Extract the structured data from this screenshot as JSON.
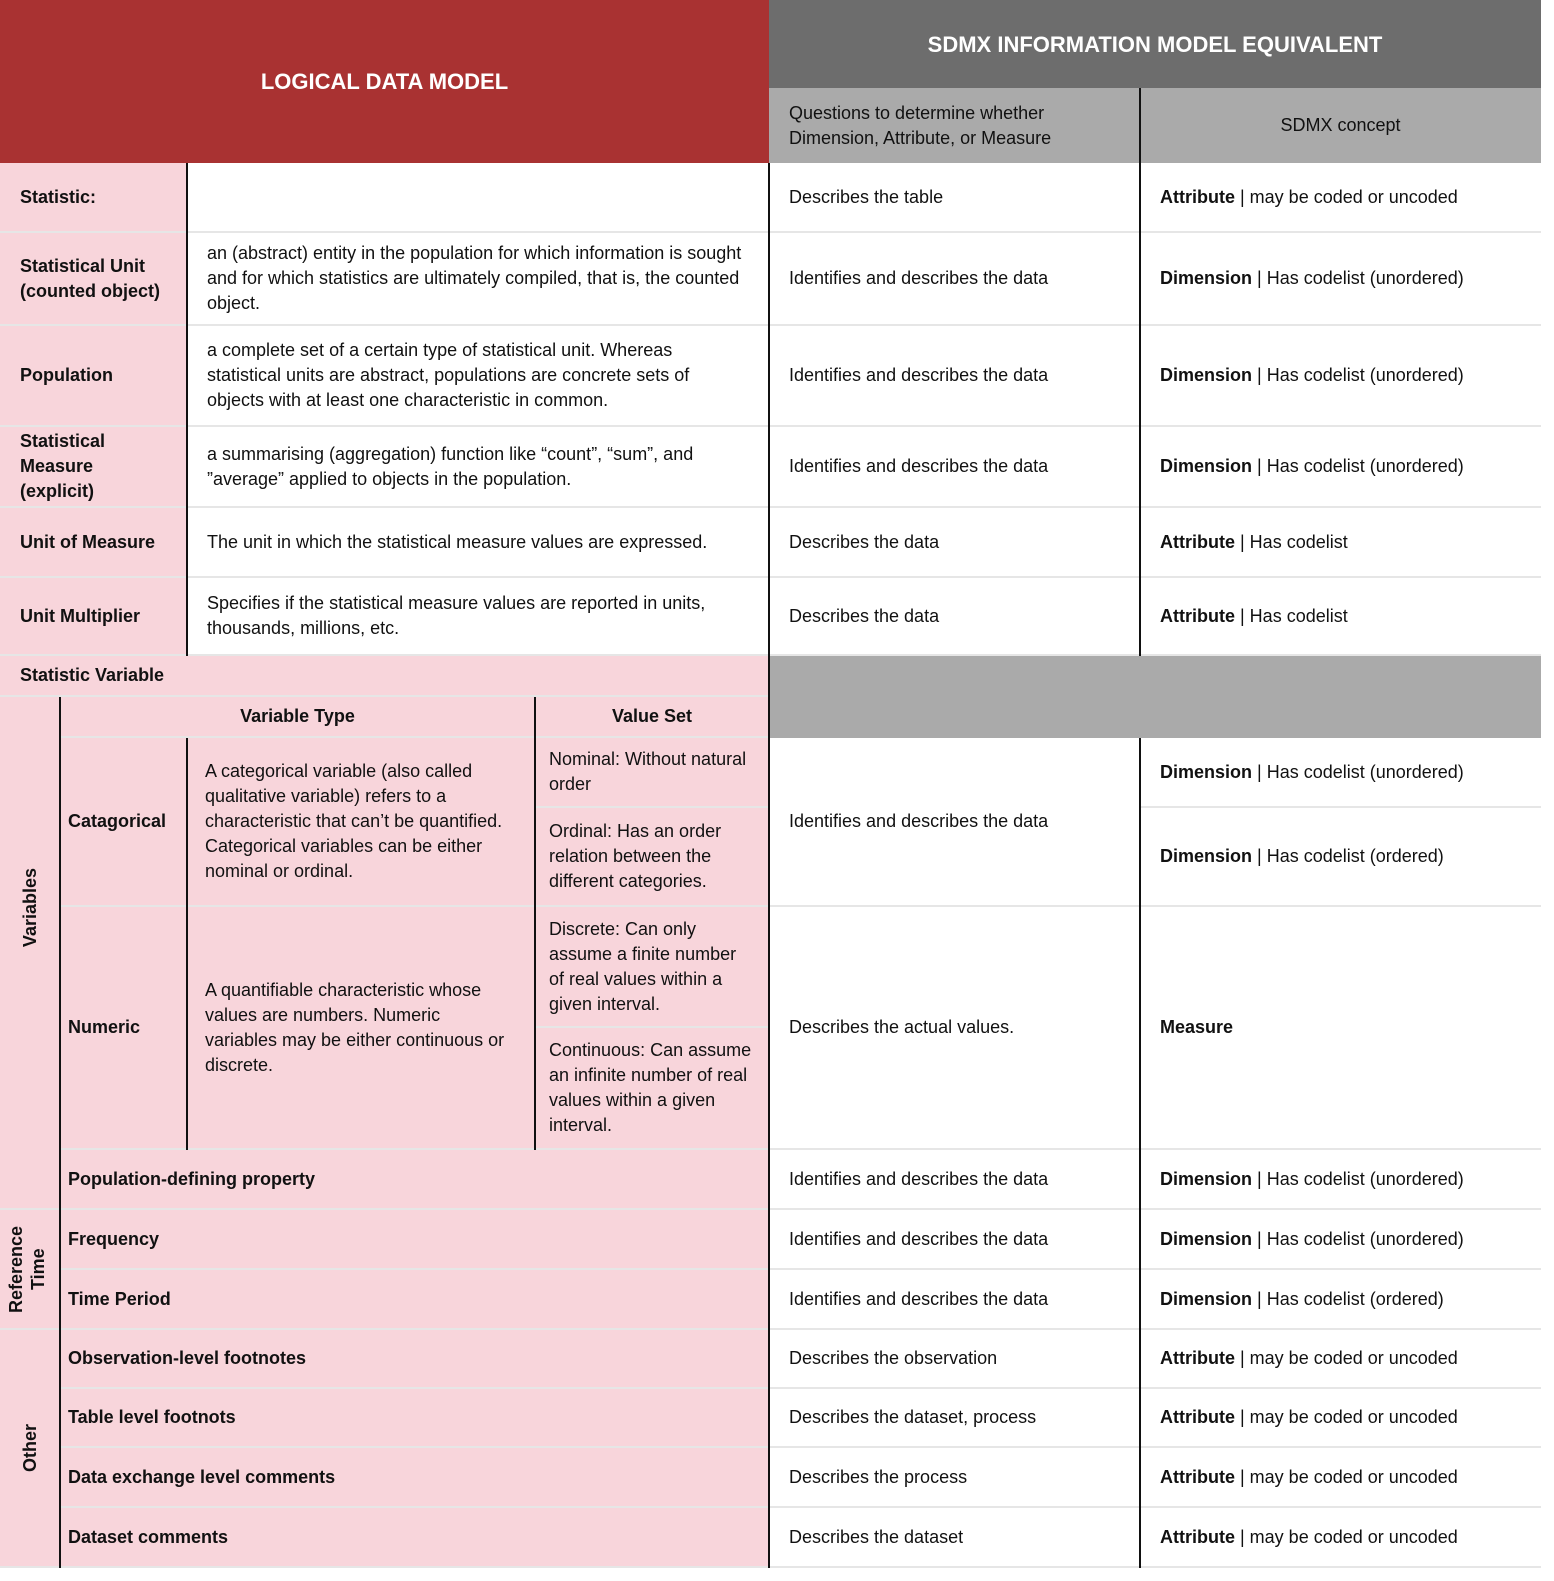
{
  "header": {
    "left_title": "LOGICAL DATA MODEL",
    "right_title": "SDMX INFORMATION MODEL EQUIVALENT",
    "question_header": "Questions to determine whether Dimension, Attribute, or Measure",
    "concept_header": "SDMX concept"
  },
  "colors": {
    "red": "#a93232",
    "dark_gray": "#6d6d6d",
    "light_gray": "#aaaaaa",
    "pink": "#f8d5db"
  },
  "top_rows": [
    {
      "label": "Statistic:",
      "desc": "",
      "question": "Describes the table",
      "term": "Attribute",
      "rest": " | may be coded or uncoded"
    },
    {
      "label": "Statistical Unit (counted object)",
      "desc": "an (abstract) entity in the population for which information is sought and for which statistics are ultimately compiled, that is, the counted object.",
      "question": "Identifies and describes the data",
      "term": "Dimension",
      "rest": " | Has codelist (unordered)"
    },
    {
      "label": "Population",
      "desc": "a complete set of a certain type of statistical unit. Whereas statistical units are abstract, populations are concrete sets of objects with at least one characteristic in common.",
      "question": "Identifies and describes the data",
      "term": "Dimension",
      "rest": " | Has codelist (unordered)"
    },
    {
      "label": "Statistical Measure (explicit)",
      "desc": "a summarising (aggregation) function like “count”, “sum”, and ”average” applied to objects in the population.",
      "question": "Identifies and describes the data",
      "term": "Dimension",
      "rest": " | Has codelist (unordered)"
    },
    {
      "label": "Unit of Measure",
      "desc": "The unit in which the statistical measure values are expressed.",
      "question": "Describes the data",
      "term": "Attribute",
      "rest": " | Has codelist"
    },
    {
      "label": "Unit Multiplier",
      "desc": "Specifies if the statistical measure values are reported in units, thousands, millions, etc.",
      "question": "Describes the data",
      "term": "Attribute",
      "rest": " | Has codelist"
    }
  ],
  "statistic_variable": "Statistic Variable",
  "variables": {
    "group": "Variables",
    "type_header": "Variable Type",
    "value_set_header": "Value Set",
    "categorical": {
      "name": "Catagorical",
      "desc": "A categorical variable (also called qualitative variable) refers to a characteristic that can’t be quantified. Categorical variables can be either nominal or ordinal.",
      "values": [
        "Nominal: Without natural order",
        "Ordinal: Has an order relation between the different categories."
      ],
      "question": "Identifies and describes the data",
      "concepts": [
        {
          "term": "Dimension",
          "rest": " | Has codelist (unordered)"
        },
        {
          "term": "Dimension",
          "rest": " | Has codelist (ordered)"
        }
      ]
    },
    "numeric": {
      "name": "Numeric",
      "desc": "A quantifiable characteristic whose values are numbers. Numeric variables may be either continuous or discrete.",
      "values": [
        "Discrete: Can only assume a finite number of real values within a given interval.",
        "Continuous: Can assume an infinite number of real values within a given interval."
      ],
      "question": "Describes the actual values.",
      "term": "Measure"
    }
  },
  "groups": {
    "reference_time": "Reference Time",
    "other": "Other"
  },
  "lower_rows": [
    {
      "label": "Population-defining property",
      "question": "Identifies and describes the data",
      "term": "Dimension",
      "rest": " | Has codelist (unordered)"
    },
    {
      "label": "Frequency",
      "question": "Identifies and describes the data",
      "term": "Dimension",
      "rest": " | Has codelist (unordered)"
    },
    {
      "label": "Time Period",
      "question": "Identifies and describes the data",
      "term": "Dimension",
      "rest": " | Has codelist (ordered)"
    },
    {
      "label": "Observation-level footnotes",
      "question": "Describes the observation",
      "term": "Attribute",
      "rest": " | may be coded or uncoded"
    },
    {
      "label": "Table level footnots",
      "question": "Describes the dataset, process",
      "term": "Attribute",
      "rest": " | may be coded or uncoded"
    },
    {
      "label": "Data exchange level comments",
      "question": "Describes the process",
      "term": "Attribute",
      "rest": " | may be coded or uncoded"
    },
    {
      "label": "Dataset comments",
      "question": "Describes the dataset",
      "term": "Attribute",
      "rest": " | may be coded or uncoded"
    }
  ]
}
